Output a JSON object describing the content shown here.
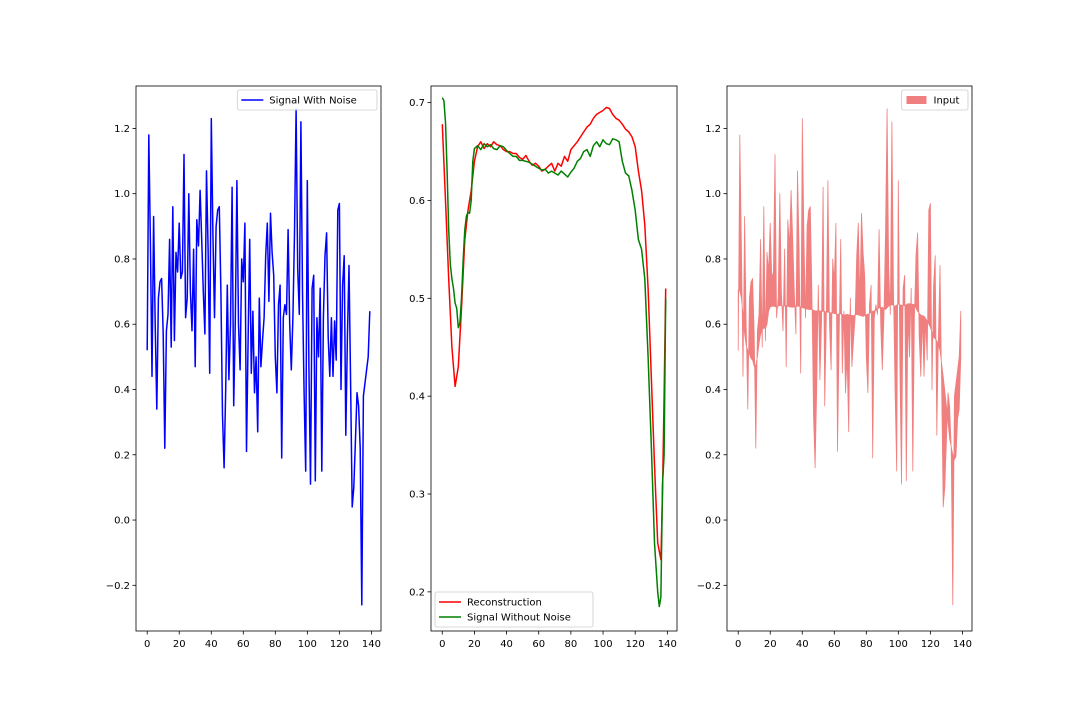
{
  "chart_data": [
    {
      "type": "line",
      "legend_loc": "upper right",
      "xlim": [
        -7,
        146
      ],
      "ylim": [
        -0.34,
        1.33
      ],
      "xticks": [
        0,
        20,
        40,
        60,
        80,
        100,
        120,
        140
      ],
      "yticks": [
        -0.2,
        0.0,
        0.2,
        0.4,
        0.6,
        0.8,
        1.0,
        1.2
      ],
      "ytick_labels": [
        "−0.2",
        "0.0",
        "0.2",
        "0.4",
        "0.6",
        "0.8",
        "1.0",
        "1.2"
      ],
      "series": [
        {
          "name": "Signal With Noise",
          "color": "#0000ff",
          "x": [
            0,
            1,
            2,
            3,
            4,
            5,
            6,
            7,
            8,
            9,
            10,
            11,
            12,
            13,
            14,
            15,
            16,
            17,
            18,
            19,
            20,
            21,
            22,
            23,
            24,
            25,
            26,
            27,
            28,
            29,
            30,
            31,
            32,
            33,
            34,
            35,
            36,
            37,
            38,
            39,
            40,
            41,
            42,
            43,
            44,
            45,
            46,
            47,
            48,
            49,
            50,
            51,
            52,
            53,
            54,
            55,
            56,
            57,
            58,
            59,
            60,
            61,
            62,
            63,
            64,
            65,
            66,
            67,
            68,
            69,
            70,
            71,
            72,
            73,
            74,
            75,
            76,
            77,
            78,
            79,
            80,
            81,
            82,
            83,
            84,
            85,
            86,
            87,
            88,
            89,
            90,
            91,
            92,
            93,
            94,
            95,
            96,
            97,
            98,
            99,
            100,
            101,
            102,
            103,
            104,
            105,
            106,
            107,
            108,
            109,
            110,
            111,
            112,
            113,
            114,
            115,
            116,
            117,
            118,
            119,
            120,
            121,
            122,
            123,
            124,
            125,
            126,
            127,
            128,
            129,
            130,
            131,
            132,
            133,
            134,
            135,
            136,
            137,
            138,
            139
          ],
          "values": [
            0.52,
            1.18,
            0.85,
            0.44,
            0.93,
            0.6,
            0.34,
            0.68,
            0.73,
            0.74,
            0.57,
            0.22,
            0.58,
            0.63,
            0.86,
            0.53,
            0.96,
            0.55,
            0.82,
            0.76,
            0.91,
            0.74,
            0.76,
            1.12,
            0.62,
            0.68,
            1.0,
            0.7,
            0.58,
            0.83,
            0.47,
            0.92,
            0.84,
            1.01,
            0.86,
            0.7,
            0.57,
            1.07,
            0.83,
            0.45,
            1.23,
            0.88,
            0.62,
            0.9,
            0.95,
            0.96,
            0.7,
            0.32,
            0.16,
            0.4,
            0.72,
            0.43,
            0.6,
            1.02,
            0.35,
            0.61,
            1.04,
            0.6,
            0.46,
            0.8,
            0.73,
            0.91,
            0.21,
            0.55,
            0.86,
            0.45,
            0.64,
            0.39,
            0.5,
            0.27,
            0.68,
            0.47,
            0.55,
            0.62,
            0.81,
            0.91,
            0.67,
            0.94,
            0.82,
            0.75,
            0.5,
            0.39,
            0.66,
            0.72,
            0.19,
            0.62,
            0.66,
            0.63,
            0.89,
            0.6,
            0.46,
            0.62,
            0.88,
            1.26,
            0.77,
            0.63,
            1.22,
            0.7,
            0.39,
            0.15,
            1.04,
            0.47,
            0.11,
            0.71,
            0.75,
            0.12,
            0.62,
            0.5,
            0.71,
            0.15,
            0.62,
            0.81,
            0.88,
            0.56,
            0.44,
            0.62,
            0.44,
            0.61,
            0.49,
            0.95,
            0.97,
            0.4,
            0.72,
            0.81,
            0.26,
            0.56,
            0.78,
            0.42,
            0.04,
            0.1,
            0.24,
            0.39,
            0.35,
            0.22,
            -0.26,
            0.38,
            0.42,
            0.46,
            0.5,
            0.64
          ]
        }
      ]
    },
    {
      "type": "line",
      "legend_loc": "lower left",
      "xlim": [
        -7,
        146
      ],
      "ylim": [
        0.16,
        0.717
      ],
      "xticks": [
        0,
        20,
        40,
        60,
        80,
        100,
        120,
        140
      ],
      "yticks": [
        0.2,
        0.3,
        0.4,
        0.5,
        0.6,
        0.7
      ],
      "ytick_labels": [
        "0.2",
        "0.3",
        "0.4",
        "0.5",
        "0.6",
        "0.7"
      ],
      "series": [
        {
          "name": "Reconstruction",
          "color": "#ff0000",
          "x": [
            0,
            2,
            4,
            6,
            8,
            10,
            12,
            14,
            16,
            18,
            20,
            22,
            24,
            26,
            28,
            30,
            32,
            34,
            36,
            38,
            40,
            42,
            44,
            46,
            48,
            50,
            52,
            54,
            56,
            58,
            60,
            62,
            64,
            66,
            68,
            70,
            72,
            74,
            76,
            78,
            80,
            82,
            84,
            86,
            88,
            90,
            92,
            94,
            96,
            98,
            100,
            102,
            104,
            106,
            108,
            110,
            112,
            114,
            116,
            118,
            120,
            122,
            124,
            126,
            128,
            130,
            132,
            134,
            136,
            137,
            138,
            139
          ],
          "values": [
            0.678,
            0.6,
            0.52,
            0.45,
            0.41,
            0.43,
            0.49,
            0.56,
            0.59,
            0.61,
            0.64,
            0.655,
            0.66,
            0.653,
            0.658,
            0.655,
            0.66,
            0.657,
            0.656,
            0.652,
            0.65,
            0.65,
            0.648,
            0.648,
            0.644,
            0.642,
            0.646,
            0.64,
            0.636,
            0.638,
            0.635,
            0.63,
            0.632,
            0.635,
            0.638,
            0.63,
            0.638,
            0.635,
            0.645,
            0.64,
            0.652,
            0.656,
            0.66,
            0.665,
            0.67,
            0.675,
            0.678,
            0.684,
            0.688,
            0.69,
            0.692,
            0.695,
            0.694,
            0.688,
            0.684,
            0.682,
            0.678,
            0.673,
            0.67,
            0.665,
            0.655,
            0.63,
            0.61,
            0.575,
            0.51,
            0.42,
            0.33,
            0.25,
            0.233,
            0.3,
            0.4,
            0.51
          ]
        },
        {
          "name": "Signal Without Noise",
          "color": "#008000",
          "x": [
            0,
            1,
            2,
            3,
            4,
            5,
            6,
            7,
            8,
            9,
            10,
            11,
            12,
            13,
            14,
            15,
            16,
            17,
            18,
            19,
            20,
            22,
            24,
            26,
            28,
            30,
            32,
            34,
            36,
            38,
            40,
            42,
            44,
            46,
            48,
            50,
            52,
            54,
            56,
            58,
            60,
            62,
            64,
            66,
            68,
            70,
            72,
            74,
            76,
            78,
            80,
            82,
            84,
            86,
            88,
            90,
            92,
            94,
            96,
            98,
            100,
            102,
            104,
            106,
            108,
            110,
            112,
            114,
            116,
            118,
            120,
            122,
            124,
            126,
            128,
            130,
            132,
            134,
            135,
            136,
            137,
            138,
            139
          ],
          "values": [
            0.705,
            0.702,
            0.68,
            0.63,
            0.57,
            0.535,
            0.52,
            0.51,
            0.495,
            0.49,
            0.47,
            0.475,
            0.5,
            0.54,
            0.57,
            0.584,
            0.588,
            0.587,
            0.6,
            0.64,
            0.653,
            0.656,
            0.652,
            0.658,
            0.655,
            0.657,
            0.653,
            0.652,
            0.656,
            0.655,
            0.651,
            0.648,
            0.645,
            0.645,
            0.641,
            0.641,
            0.64,
            0.639,
            0.637,
            0.635,
            0.633,
            0.631,
            0.632,
            0.628,
            0.63,
            0.628,
            0.626,
            0.63,
            0.627,
            0.624,
            0.629,
            0.633,
            0.64,
            0.643,
            0.65,
            0.652,
            0.645,
            0.656,
            0.66,
            0.655,
            0.662,
            0.658,
            0.657,
            0.663,
            0.662,
            0.66,
            0.64,
            0.628,
            0.625,
            0.61,
            0.59,
            0.56,
            0.55,
            0.52,
            0.44,
            0.35,
            0.25,
            0.2,
            0.185,
            0.195,
            0.31,
            0.34,
            0.5
          ]
        }
      ]
    },
    {
      "type": "area",
      "legend_loc": "upper right",
      "xlim": [
        -7,
        146
      ],
      "ylim": [
        -0.34,
        1.33
      ],
      "xticks": [
        0,
        20,
        40,
        60,
        80,
        100,
        120,
        140
      ],
      "yticks": [
        -0.2,
        0.0,
        0.2,
        0.4,
        0.6,
        0.8,
        1.0,
        1.2
      ],
      "ytick_labels": [
        "−0.2",
        "0.0",
        "0.2",
        "0.4",
        "0.6",
        "0.8",
        "1.0",
        "1.2"
      ],
      "series": [
        {
          "name": "Input",
          "color": "#f08080",
          "fill_between": "Signal With Noise / Signal Without Noise"
        }
      ]
    }
  ]
}
